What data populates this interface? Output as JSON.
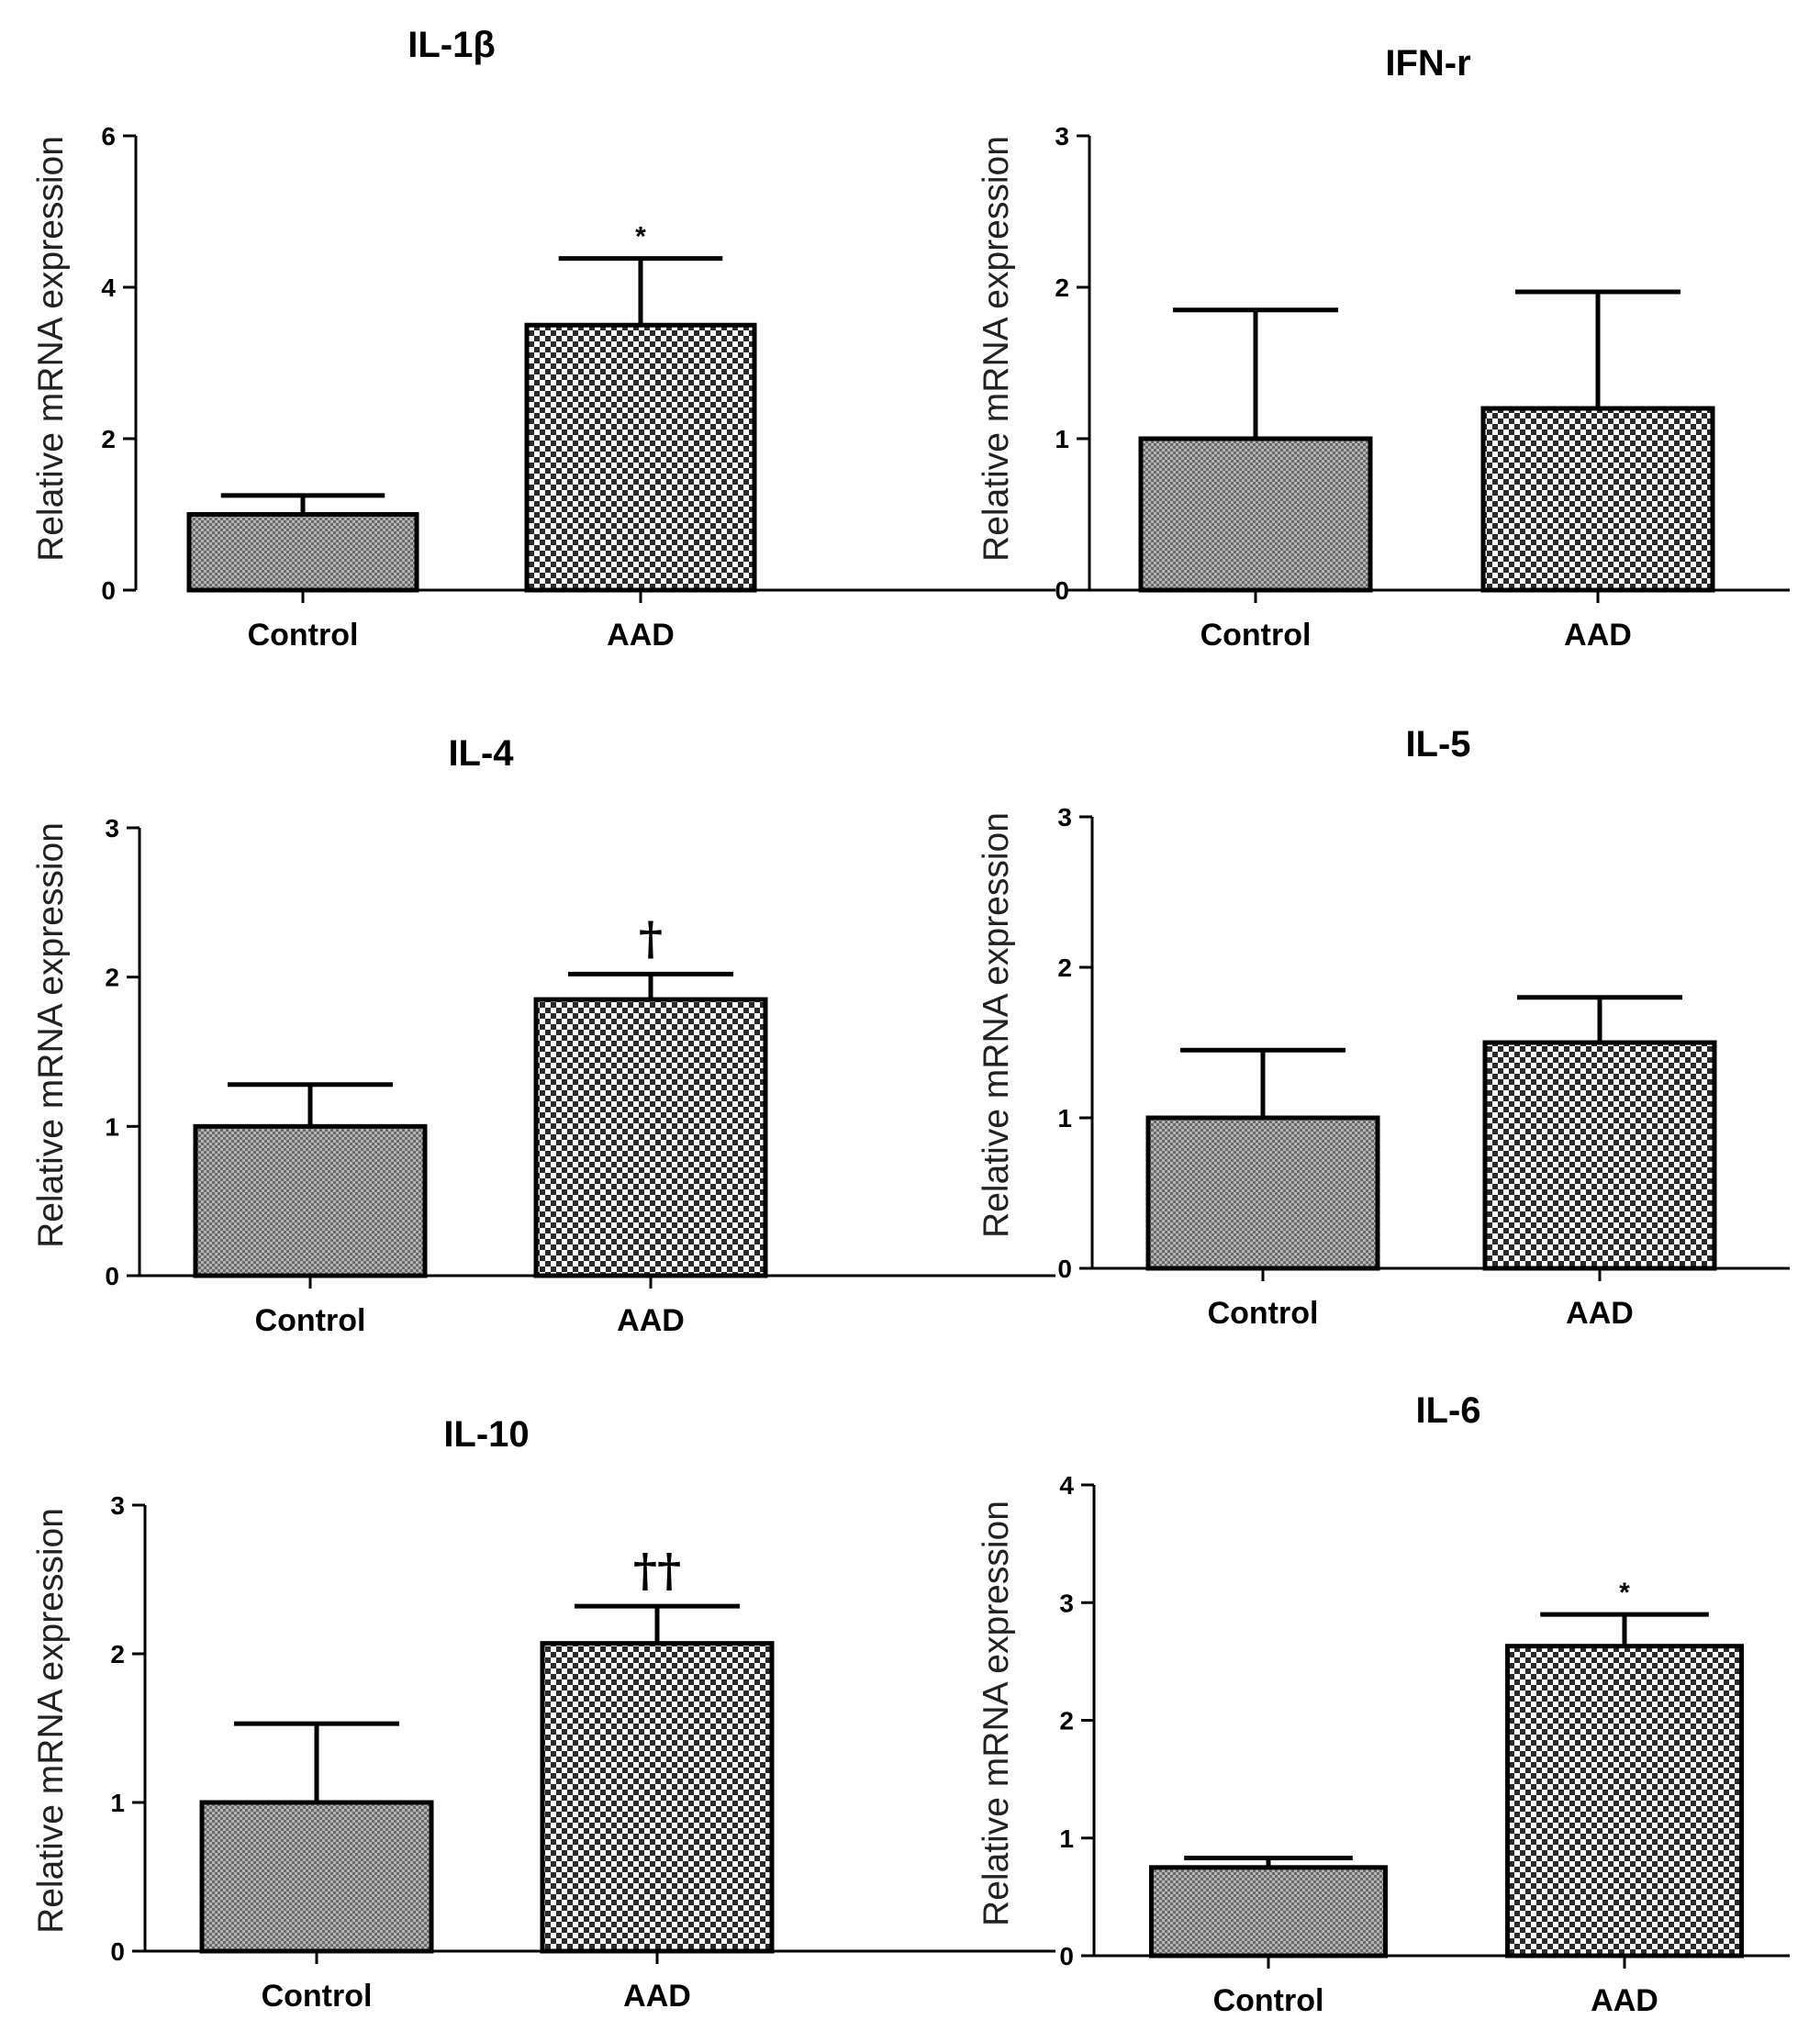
{
  "chart_data": [
    {
      "type": "bar",
      "title": "IL-1β",
      "ylabel": "Relative mRNA expression",
      "xlabel": "",
      "categories": [
        "Control",
        "AAD"
      ],
      "values": [
        1.0,
        3.5
      ],
      "errors": [
        0.25,
        0.88
      ],
      "annotations": [
        "",
        "*"
      ],
      "ylim": [
        0,
        6
      ],
      "yticks": [
        0,
        2,
        4,
        6
      ]
    },
    {
      "type": "bar",
      "title": "IFN-r",
      "ylabel": "Relative mRNA expression",
      "xlabel": "",
      "categories": [
        "Control",
        "AAD"
      ],
      "values": [
        1.0,
        1.2
      ],
      "errors": [
        0.85,
        0.77
      ],
      "annotations": [
        "",
        ""
      ],
      "ylim": [
        0,
        3
      ],
      "yticks": [
        0,
        1,
        2,
        3
      ]
    },
    {
      "type": "bar",
      "title": "IL-4",
      "ylabel": "Relative mRNA expression",
      "xlabel": "",
      "categories": [
        "Control",
        "AAD"
      ],
      "values": [
        1.0,
        1.85
      ],
      "errors": [
        0.28,
        0.17
      ],
      "annotations": [
        "",
        "†"
      ],
      "ylim": [
        0,
        3
      ],
      "yticks": [
        0,
        1,
        2,
        3
      ]
    },
    {
      "type": "bar",
      "title": "IL-5",
      "ylabel": "Relative mRNA expression",
      "xlabel": "",
      "categories": [
        "Control",
        "AAD"
      ],
      "values": [
        1.0,
        1.5
      ],
      "errors": [
        0.45,
        0.3
      ],
      "annotations": [
        "",
        ""
      ],
      "ylim": [
        0,
        3
      ],
      "yticks": [
        0,
        1,
        2,
        3
      ]
    },
    {
      "type": "bar",
      "title": "IL-10",
      "ylabel": "Relative mRNA expression",
      "xlabel": "",
      "categories": [
        "Control",
        "AAD"
      ],
      "values": [
        1.0,
        2.07
      ],
      "errors": [
        0.53,
        0.25
      ],
      "annotations": [
        "",
        "††"
      ],
      "ylim": [
        0,
        3
      ],
      "yticks": [
        0,
        1,
        2,
        3
      ]
    },
    {
      "type": "bar",
      "title": "IL-6",
      "ylabel": "Relative mRNA expression",
      "xlabel": "",
      "categories": [
        "Control",
        "AAD"
      ],
      "values": [
        0.75,
        2.63
      ],
      "errors": [
        0.08,
        0.27
      ],
      "annotations": [
        "",
        "*"
      ],
      "ylim": [
        0,
        4
      ],
      "yticks": [
        0,
        1,
        2,
        3,
        4
      ]
    }
  ]
}
